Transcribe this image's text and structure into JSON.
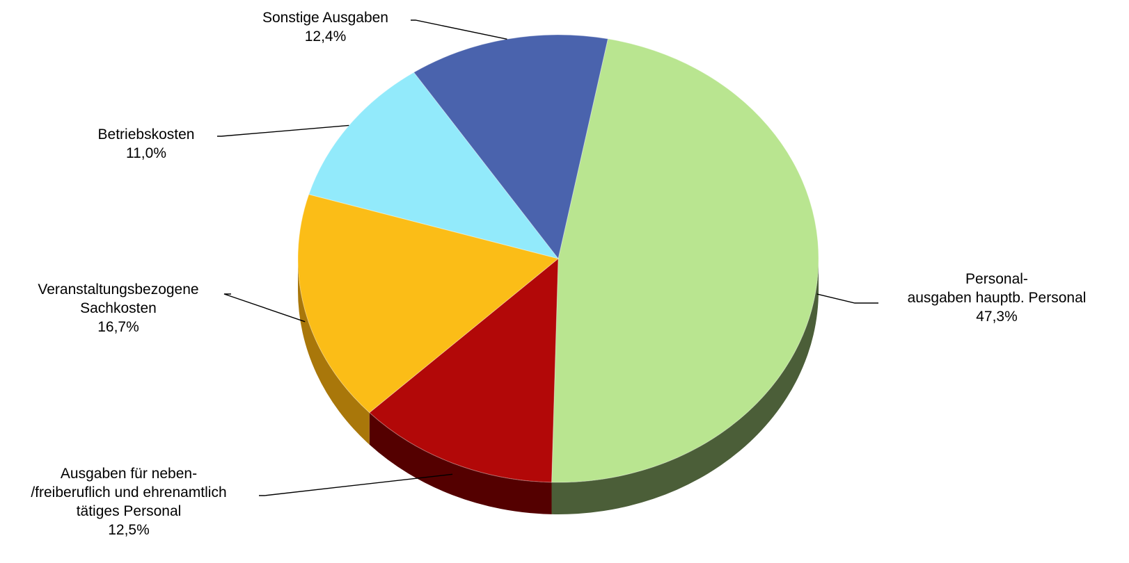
{
  "chart_data": {
    "type": "pie",
    "title": "",
    "slices": [
      {
        "name_lines": [
          "Personal-",
          "ausgaben hauptb. Personal"
        ],
        "value": 47.3,
        "value_label": "47,3%",
        "color": "#b9e590",
        "side_color": "#4b5e38"
      },
      {
        "name_lines": [
          "Ausgaben für neben-",
          "/freiberuflich und ehrenamtlich",
          "tätiges Personal"
        ],
        "value": 12.5,
        "value_label": "12,5%",
        "color": "#b20808",
        "side_color": "#540000"
      },
      {
        "name_lines": [
          "Veranstaltungsbezogene",
          "Sachkosten"
        ],
        "value": 16.7,
        "value_label": "16,7%",
        "color": "#fbbd17",
        "side_color": "#a9770a"
      },
      {
        "name_lines": [
          "Betriebskosten"
        ],
        "value": 11.0,
        "value_label": "11,0%",
        "color": "#92eafb",
        "side_color": "#5aa4b3"
      },
      {
        "name_lines": [
          "Sonstige Ausgaben"
        ],
        "value": 12.4,
        "value_label": "12,4%",
        "color": "#4a63ad",
        "side_color": "#2b3c6b"
      }
    ],
    "style": "3d-tilted",
    "legend": "none (leader-line labels)"
  }
}
